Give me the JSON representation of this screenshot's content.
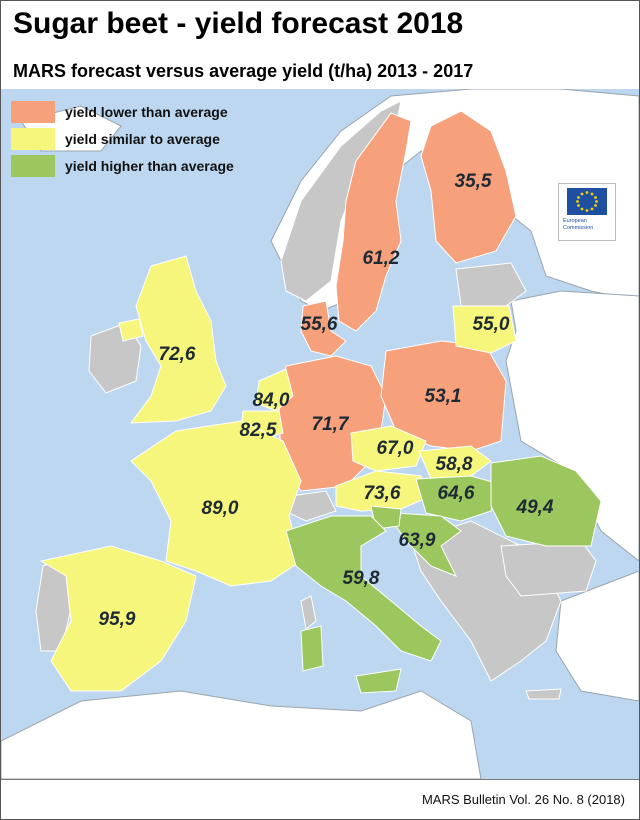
{
  "title": "Sugar beet - yield forecast 2018",
  "subtitle": "MARS forecast versus average yield (t/ha) 2013 - 2017",
  "legend": [
    {
      "label": "yield lower than average",
      "color": "#f6a07c"
    },
    {
      "label": "yield similar to average",
      "color": "#f6f67c"
    },
    {
      "label": "yield higher than average",
      "color": "#9cc65e"
    }
  ],
  "no_data_color": "#c7c7c7",
  "sea_color": "#bcd7ef",
  "logo": {
    "text": "European Commission"
  },
  "countries": [
    {
      "name": "Finland",
      "value": "35,5",
      "category": "lower"
    },
    {
      "name": "Sweden",
      "value": "61,2",
      "category": "lower"
    },
    {
      "name": "Lithuania",
      "value": "55,0",
      "category": "similar"
    },
    {
      "name": "Denmark",
      "value": "55,6",
      "category": "lower"
    },
    {
      "name": "United Kingdom",
      "value": "72,6",
      "category": "similar"
    },
    {
      "name": "Netherlands",
      "value": "84,0",
      "category": "similar"
    },
    {
      "name": "Poland",
      "value": "53,1",
      "category": "lower"
    },
    {
      "name": "Germany",
      "value": "71,7",
      "category": "lower"
    },
    {
      "name": "Belgium",
      "value": "82,5",
      "category": "similar"
    },
    {
      "name": "Czechia",
      "value": "67,0",
      "category": "similar"
    },
    {
      "name": "Slovakia",
      "value": "58,8",
      "category": "similar"
    },
    {
      "name": "Austria",
      "value": "73,6",
      "category": "similar"
    },
    {
      "name": "Hungary",
      "value": "64,6",
      "category": "higher"
    },
    {
      "name": "Romania",
      "value": "49,4",
      "category": "higher"
    },
    {
      "name": "France",
      "value": "89,0",
      "category": "similar"
    },
    {
      "name": "Croatia",
      "value": "63,9",
      "category": "higher"
    },
    {
      "name": "Italy",
      "value": "59,8",
      "category": "higher"
    },
    {
      "name": "Spain",
      "value": "95,9",
      "category": "similar"
    }
  ],
  "footer": "MARS Bulletin Vol. 26 No. 8 (2018)"
}
